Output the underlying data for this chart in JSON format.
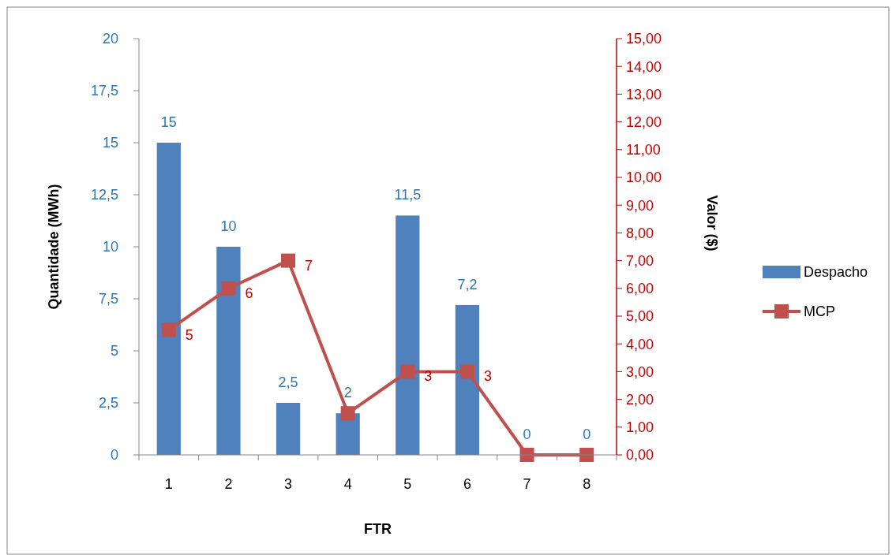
{
  "chart_data": {
    "type": "bar",
    "xlabel": "FTR",
    "ylabel": "Quantidade (MWh)",
    "y2label": "Valor ($)",
    "categories": [
      "1",
      "2",
      "3",
      "4",
      "5",
      "6",
      "7",
      "8"
    ],
    "series": [
      {
        "name": "Despacho",
        "color": "#4f81bd",
        "values": [
          15,
          10,
          2.5,
          2,
          11.5,
          7.2,
          0,
          0
        ],
        "value_labels": [
          "15",
          "10",
          "2,5",
          "2",
          "11,5",
          "7,2",
          "0",
          "0"
        ]
      },
      {
        "name": "MCP",
        "type": "line",
        "axis": "y2",
        "color": "#c0504d",
        "marker": "square",
        "values": [
          4.5,
          6,
          7,
          1.5,
          3,
          3,
          0,
          0
        ],
        "value_labels": [
          "5",
          "6",
          "7",
          null,
          "3",
          "3",
          null,
          null
        ]
      }
    ],
    "ylim": [
      0,
      20
    ],
    "yticks": [
      0,
      {
        "value": 2.5,
        "label": "2,5"
      },
      5,
      {
        "value": 7.5,
        "label": "7,5"
      },
      10,
      {
        "value": 12.5,
        "label": "12,5"
      },
      15,
      {
        "value": 17.5,
        "label": "17,5"
      },
      20
    ],
    "y2lim": [
      0,
      15
    ],
    "y2ticks": [
      {
        "value": 0,
        "label": "0,00"
      },
      {
        "value": 1,
        "label": "1,00"
      },
      {
        "value": 2,
        "label": "2,00"
      },
      {
        "value": 3,
        "label": "3,00"
      },
      {
        "value": 4,
        "label": "4,00"
      },
      {
        "value": 5,
        "label": "5,00"
      },
      {
        "value": 6,
        "label": "6,00"
      },
      {
        "value": 7,
        "label": "7,00"
      },
      {
        "value": 8,
        "label": "8,00"
      },
      {
        "value": 9,
        "label": "9,00"
      },
      {
        "value": 10,
        "label": "10,00"
      },
      {
        "value": 11,
        "label": "11,00"
      },
      {
        "value": 12,
        "label": "12,00"
      },
      {
        "value": 13,
        "label": "13,00"
      },
      {
        "value": 14,
        "label": "14,00"
      },
      {
        "value": 15,
        "label": "15,00"
      }
    ],
    "grid": false,
    "legend": "right"
  }
}
